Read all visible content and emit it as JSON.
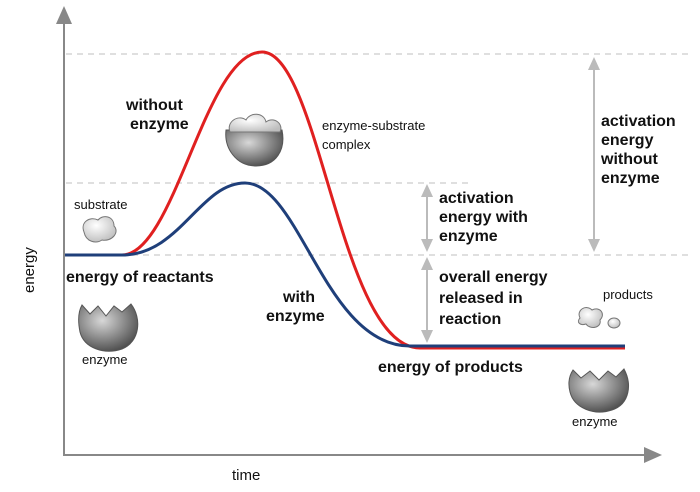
{
  "axes": {
    "x_label": "time",
    "y_label": "energy"
  },
  "curves": {
    "without_enzyme": {
      "line1": "without",
      "line2": "enzyme",
      "color": "#e02020"
    },
    "with_enzyme": {
      "line1": "with",
      "line2": "enzyme",
      "color": "#1f3f7a"
    }
  },
  "levels": {
    "reactants": "energy of reactants",
    "products": "energy of products"
  },
  "annotations": {
    "activation_without": {
      "line1": "activation",
      "line2": "energy",
      "line3": "without",
      "line4": "enzyme"
    },
    "activation_with": {
      "line1": "activation",
      "line2": "energy with",
      "line3": "enzyme"
    },
    "overall": {
      "line1": "overall energy",
      "line2": "released in",
      "line3": "reaction"
    }
  },
  "illustrations": {
    "substrate": "substrate",
    "enzyme_left": "enzyme",
    "complex_line1": "enzyme-substrate",
    "complex_line2": "complex",
    "products": "products",
    "enzyme_right": "enzyme"
  },
  "colors": {
    "axis": "#888888",
    "dashed_guides": "#cccccc",
    "arrows": "#bbbbbb",
    "enzyme_fill": "#8a8a8a"
  }
}
